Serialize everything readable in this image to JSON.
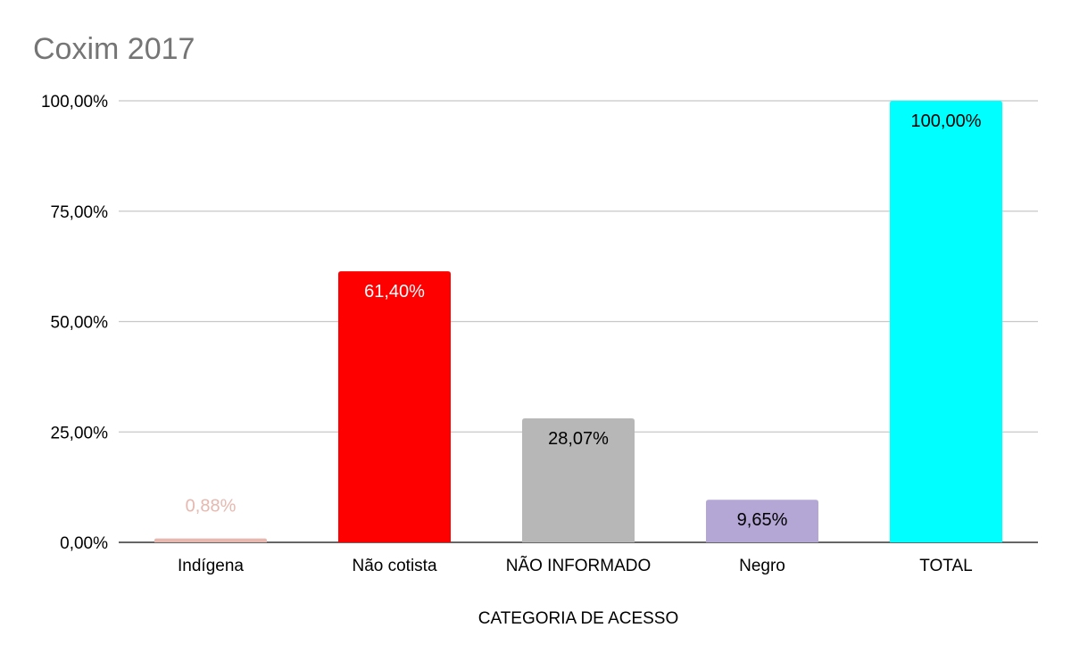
{
  "chart_data": {
    "type": "bar",
    "title": "Coxim 2017",
    "xlabel": "CATEGORIA DE ACESSO",
    "ylabel": "",
    "ylim": [
      0,
      100
    ],
    "yticks": [
      "0,00%",
      "25,00%",
      "50,00%",
      "75,00%",
      "100,00%"
    ],
    "ytick_values": [
      0,
      25,
      50,
      75,
      100
    ],
    "grid": true,
    "categories": [
      "Indígena",
      "Não cotista",
      "NÃO INFORMADO",
      "Negro",
      "TOTAL"
    ],
    "values": [
      0.88,
      61.4,
      28.07,
      9.65,
      100.0
    ],
    "data_labels": [
      "0,88%",
      "61,40%",
      "28,07%",
      "9,65%",
      "100,00%"
    ],
    "colors": [
      "#e6b8af",
      "#ff0000",
      "#b7b7b7",
      "#b4a7d6",
      "#00ffff"
    ],
    "label_colors": [
      "#e6b8af",
      "#ffffff",
      "#000000",
      "#000000",
      "#000000"
    ]
  }
}
